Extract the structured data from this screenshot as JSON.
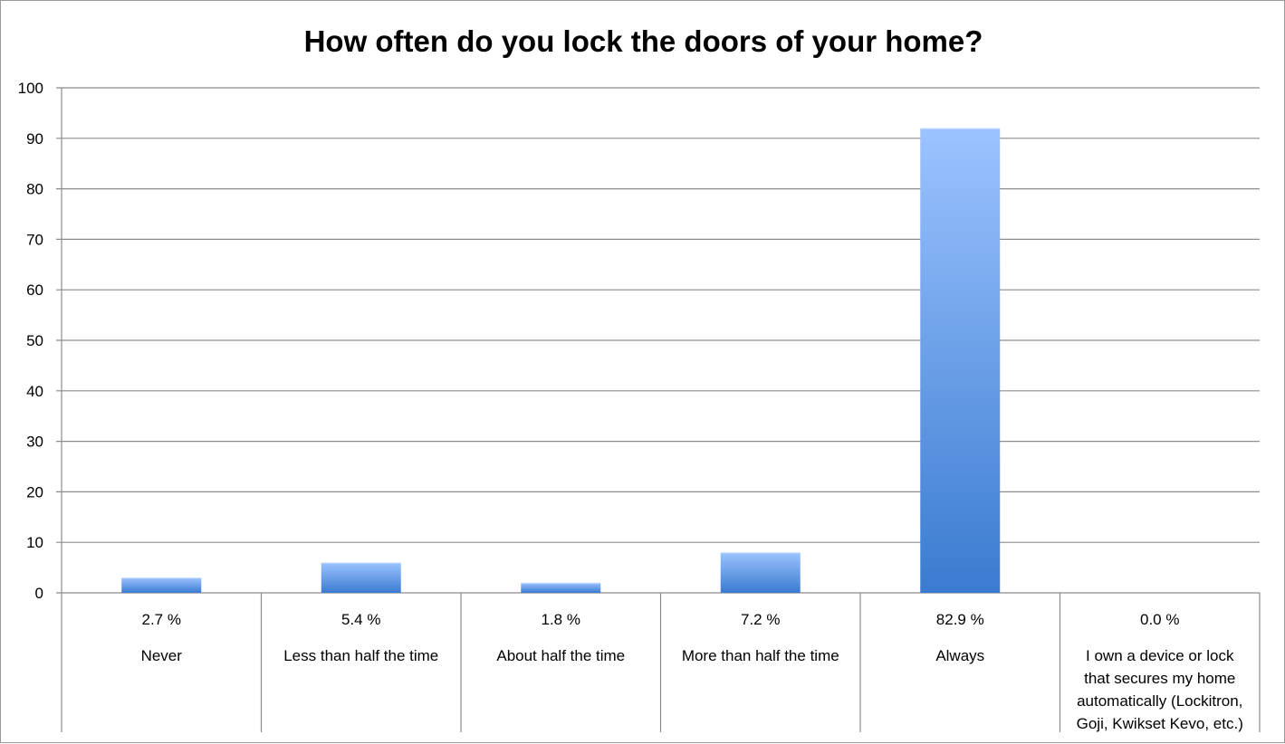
{
  "chart_data": {
    "type": "bar",
    "title": "How often do you lock the doors of your home?",
    "xlabel": "",
    "ylabel": "",
    "ylim": [
      0,
      100
    ],
    "yticks": [
      0,
      10,
      20,
      30,
      40,
      50,
      60,
      70,
      80,
      90,
      100
    ],
    "grid": true,
    "categories": [
      {
        "lines": [
          "Never"
        ]
      },
      {
        "lines": [
          "Less than half the time"
        ]
      },
      {
        "lines": [
          "About half the time"
        ]
      },
      {
        "lines": [
          "More than half the time"
        ]
      },
      {
        "lines": [
          "Always"
        ]
      },
      {
        "lines": [
          "I own a device or lock",
          "that secures my home",
          "automatically (Lockitron,",
          "Goji, Kwikset Kevo, etc.)"
        ]
      }
    ],
    "values": [
      3,
      6,
      2,
      8,
      92,
      0
    ],
    "percent_labels": [
      "2.7 %",
      "5.4 %",
      "1.8 %",
      "7.2 %",
      "82.9 %",
      "0.0 %"
    ],
    "colors": {
      "bar_top": "#9cc3ff",
      "bar_bottom": "#3a7bd0",
      "grid": "#8c8c8c",
      "axis": "#8c8c8c"
    }
  }
}
